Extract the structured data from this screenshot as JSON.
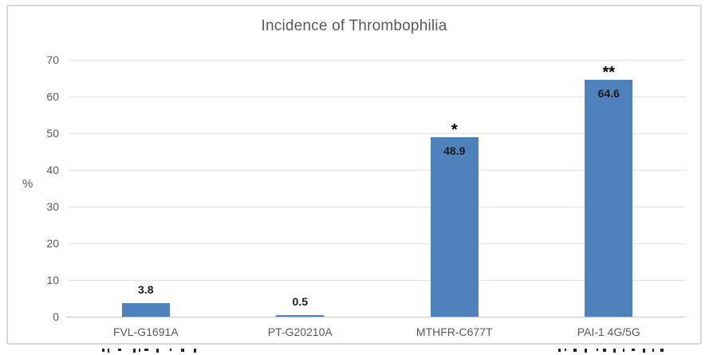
{
  "chart_data": {
    "type": "bar",
    "title": "Incidence of Thrombophilia",
    "xlabel": "",
    "ylabel": "%",
    "categories": [
      "FVL-G1691A",
      "PT-G20210A",
      "MTHFR-C677T",
      "PAI-1 4G/5G"
    ],
    "values": [
      3.8,
      0.5,
      48.9,
      64.6
    ],
    "value_labels": [
      "3.8",
      "0.5",
      "48.9",
      "64.6"
    ],
    "annotations": [
      "",
      "",
      "*",
      "**"
    ],
    "ylim": [
      0,
      70
    ],
    "yticks": [
      0,
      10,
      20,
      30,
      40,
      50,
      60,
      70
    ],
    "grid": "horizontal",
    "legend_position": "none",
    "colors": {
      "bar": "#4f81bd",
      "title_text": "#595959",
      "axis_text": "#595959",
      "gridline": "#e4e4e4",
      "axis_line": "#c9c9c9",
      "data_label": "#1a1a1a",
      "annotation": "#000000",
      "frame_border": "#d9d9d9"
    }
  }
}
